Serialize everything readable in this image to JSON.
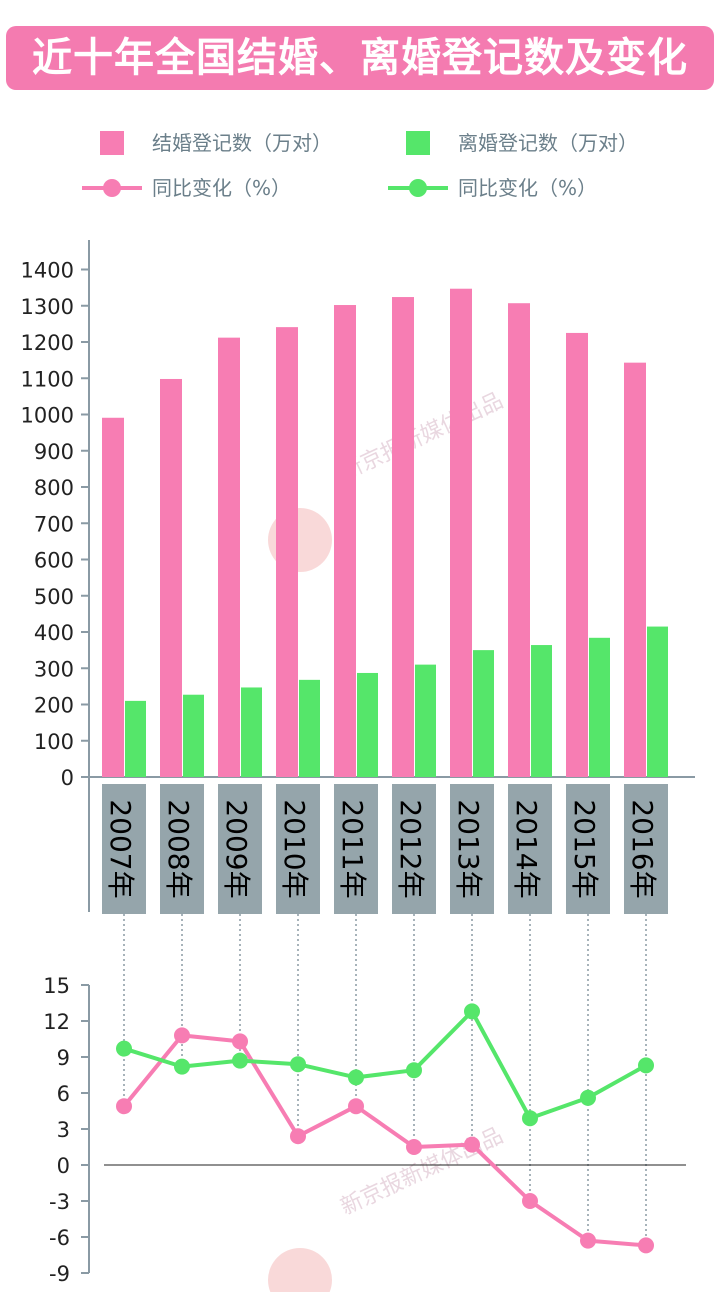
{
  "title": "近十年全国结婚、离婚登记数及变化",
  "colors": {
    "marriage": "#f77db3",
    "divorce": "#55e66a",
    "axis": "#8a9aa4",
    "year_label_bg": "#95a5ab",
    "zero_line": "#222222"
  },
  "watermark": "新京报新媒体出品",
  "legend": {
    "marriage_bar": "结婚登记数（万对）",
    "divorce_bar": "离婚登记数（万对）",
    "marriage_line": "同比变化（%）",
    "divorce_line": "同比变化（%）"
  },
  "chart_data": [
    {
      "type": "bar",
      "categories": [
        "2007年",
        "2008年",
        "2009年",
        "2010年",
        "2011年",
        "2012年",
        "2013年",
        "2014年",
        "2015年",
        "2016年"
      ],
      "series": [
        {
          "name": "结婚登记数（万对）",
          "values": [
            991,
            1098,
            1212,
            1241,
            1302,
            1324,
            1347,
            1307,
            1225,
            1143
          ]
        },
        {
          "name": "离婚登记数（万对）",
          "values": [
            210,
            227,
            247,
            268,
            287,
            310,
            350,
            364,
            384,
            415
          ]
        }
      ],
      "yticks": [
        0,
        100,
        200,
        300,
        400,
        500,
        600,
        700,
        800,
        900,
        1000,
        1100,
        1200,
        1300,
        1400
      ],
      "ylim": [
        0,
        1450
      ]
    },
    {
      "type": "line",
      "categories": [
        "2007年",
        "2008年",
        "2009年",
        "2010年",
        "2011年",
        "2012年",
        "2013年",
        "2014年",
        "2015年",
        "2016年"
      ],
      "series": [
        {
          "name": "同比变化（%）",
          "values": [
            4.9,
            10.8,
            10.3,
            2.4,
            4.9,
            1.5,
            1.7,
            -3.0,
            -6.3,
            -6.7
          ]
        },
        {
          "name": "同比变化（%）",
          "values": [
            9.7,
            8.2,
            8.7,
            8.4,
            7.3,
            7.9,
            12.8,
            3.9,
            5.6,
            8.3
          ]
        }
      ],
      "yticks": [
        15,
        12,
        9,
        6,
        3,
        0,
        -3,
        -6,
        -9
      ],
      "ylim": [
        -9,
        15
      ]
    }
  ]
}
